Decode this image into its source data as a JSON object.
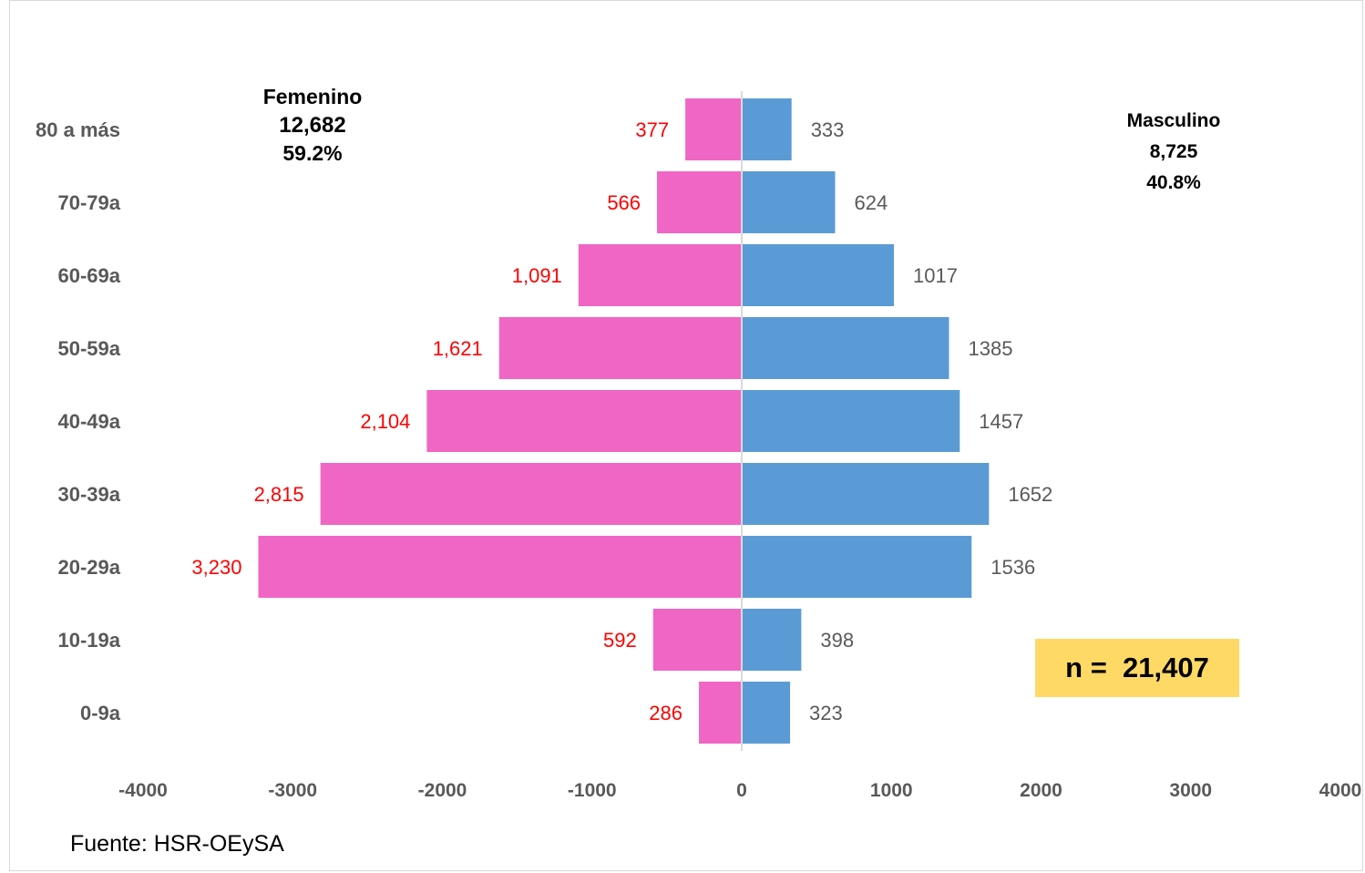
{
  "chart_data": {
    "type": "bar",
    "orientation": "horizontal",
    "layout": "population-pyramid",
    "categories": [
      "80 a más",
      "70-79a",
      "60-69a",
      "50-59a",
      "40-49a",
      "30-39a",
      "20-29a",
      "10-19a",
      "0-9a"
    ],
    "series": [
      {
        "name": "Femenino",
        "color": "#f066c4",
        "values": [
          -377,
          -566,
          -1091,
          -1621,
          -2104,
          -2815,
          -3230,
          -592,
          -286
        ],
        "data_labels": [
          "377",
          "566",
          "1,091",
          "1,621",
          "2,104",
          "2,815",
          "3,230",
          "592",
          "286"
        ]
      },
      {
        "name": "Masculino",
        "color": "#5b9bd5",
        "values": [
          333,
          624,
          1017,
          1385,
          1457,
          1652,
          1536,
          398,
          323
        ],
        "data_labels": [
          "333",
          "624",
          "1017",
          "1385",
          "1457",
          "1652",
          "1536",
          "398",
          "323"
        ]
      }
    ],
    "x_ticks": [
      "-4000",
      "-3000",
      "-2000",
      "-1000",
      "0",
      "1000",
      "2000",
      "3000",
      "4000"
    ],
    "xlim": [
      -4000,
      4000
    ],
    "grid": false,
    "label_color_fem": "#ff0000",
    "label_color_mas": "#595959"
  },
  "annotations": {
    "femenino": {
      "title": "Femenino",
      "count": "12,682",
      "percent": "59.2%"
    },
    "masculino": {
      "title": "Masculino",
      "count": "8,725",
      "percent": "40.8%"
    },
    "total": "n =  21,407",
    "total_bg": "#ffd966"
  },
  "source": "Fuente:  HSR-OEySA"
}
